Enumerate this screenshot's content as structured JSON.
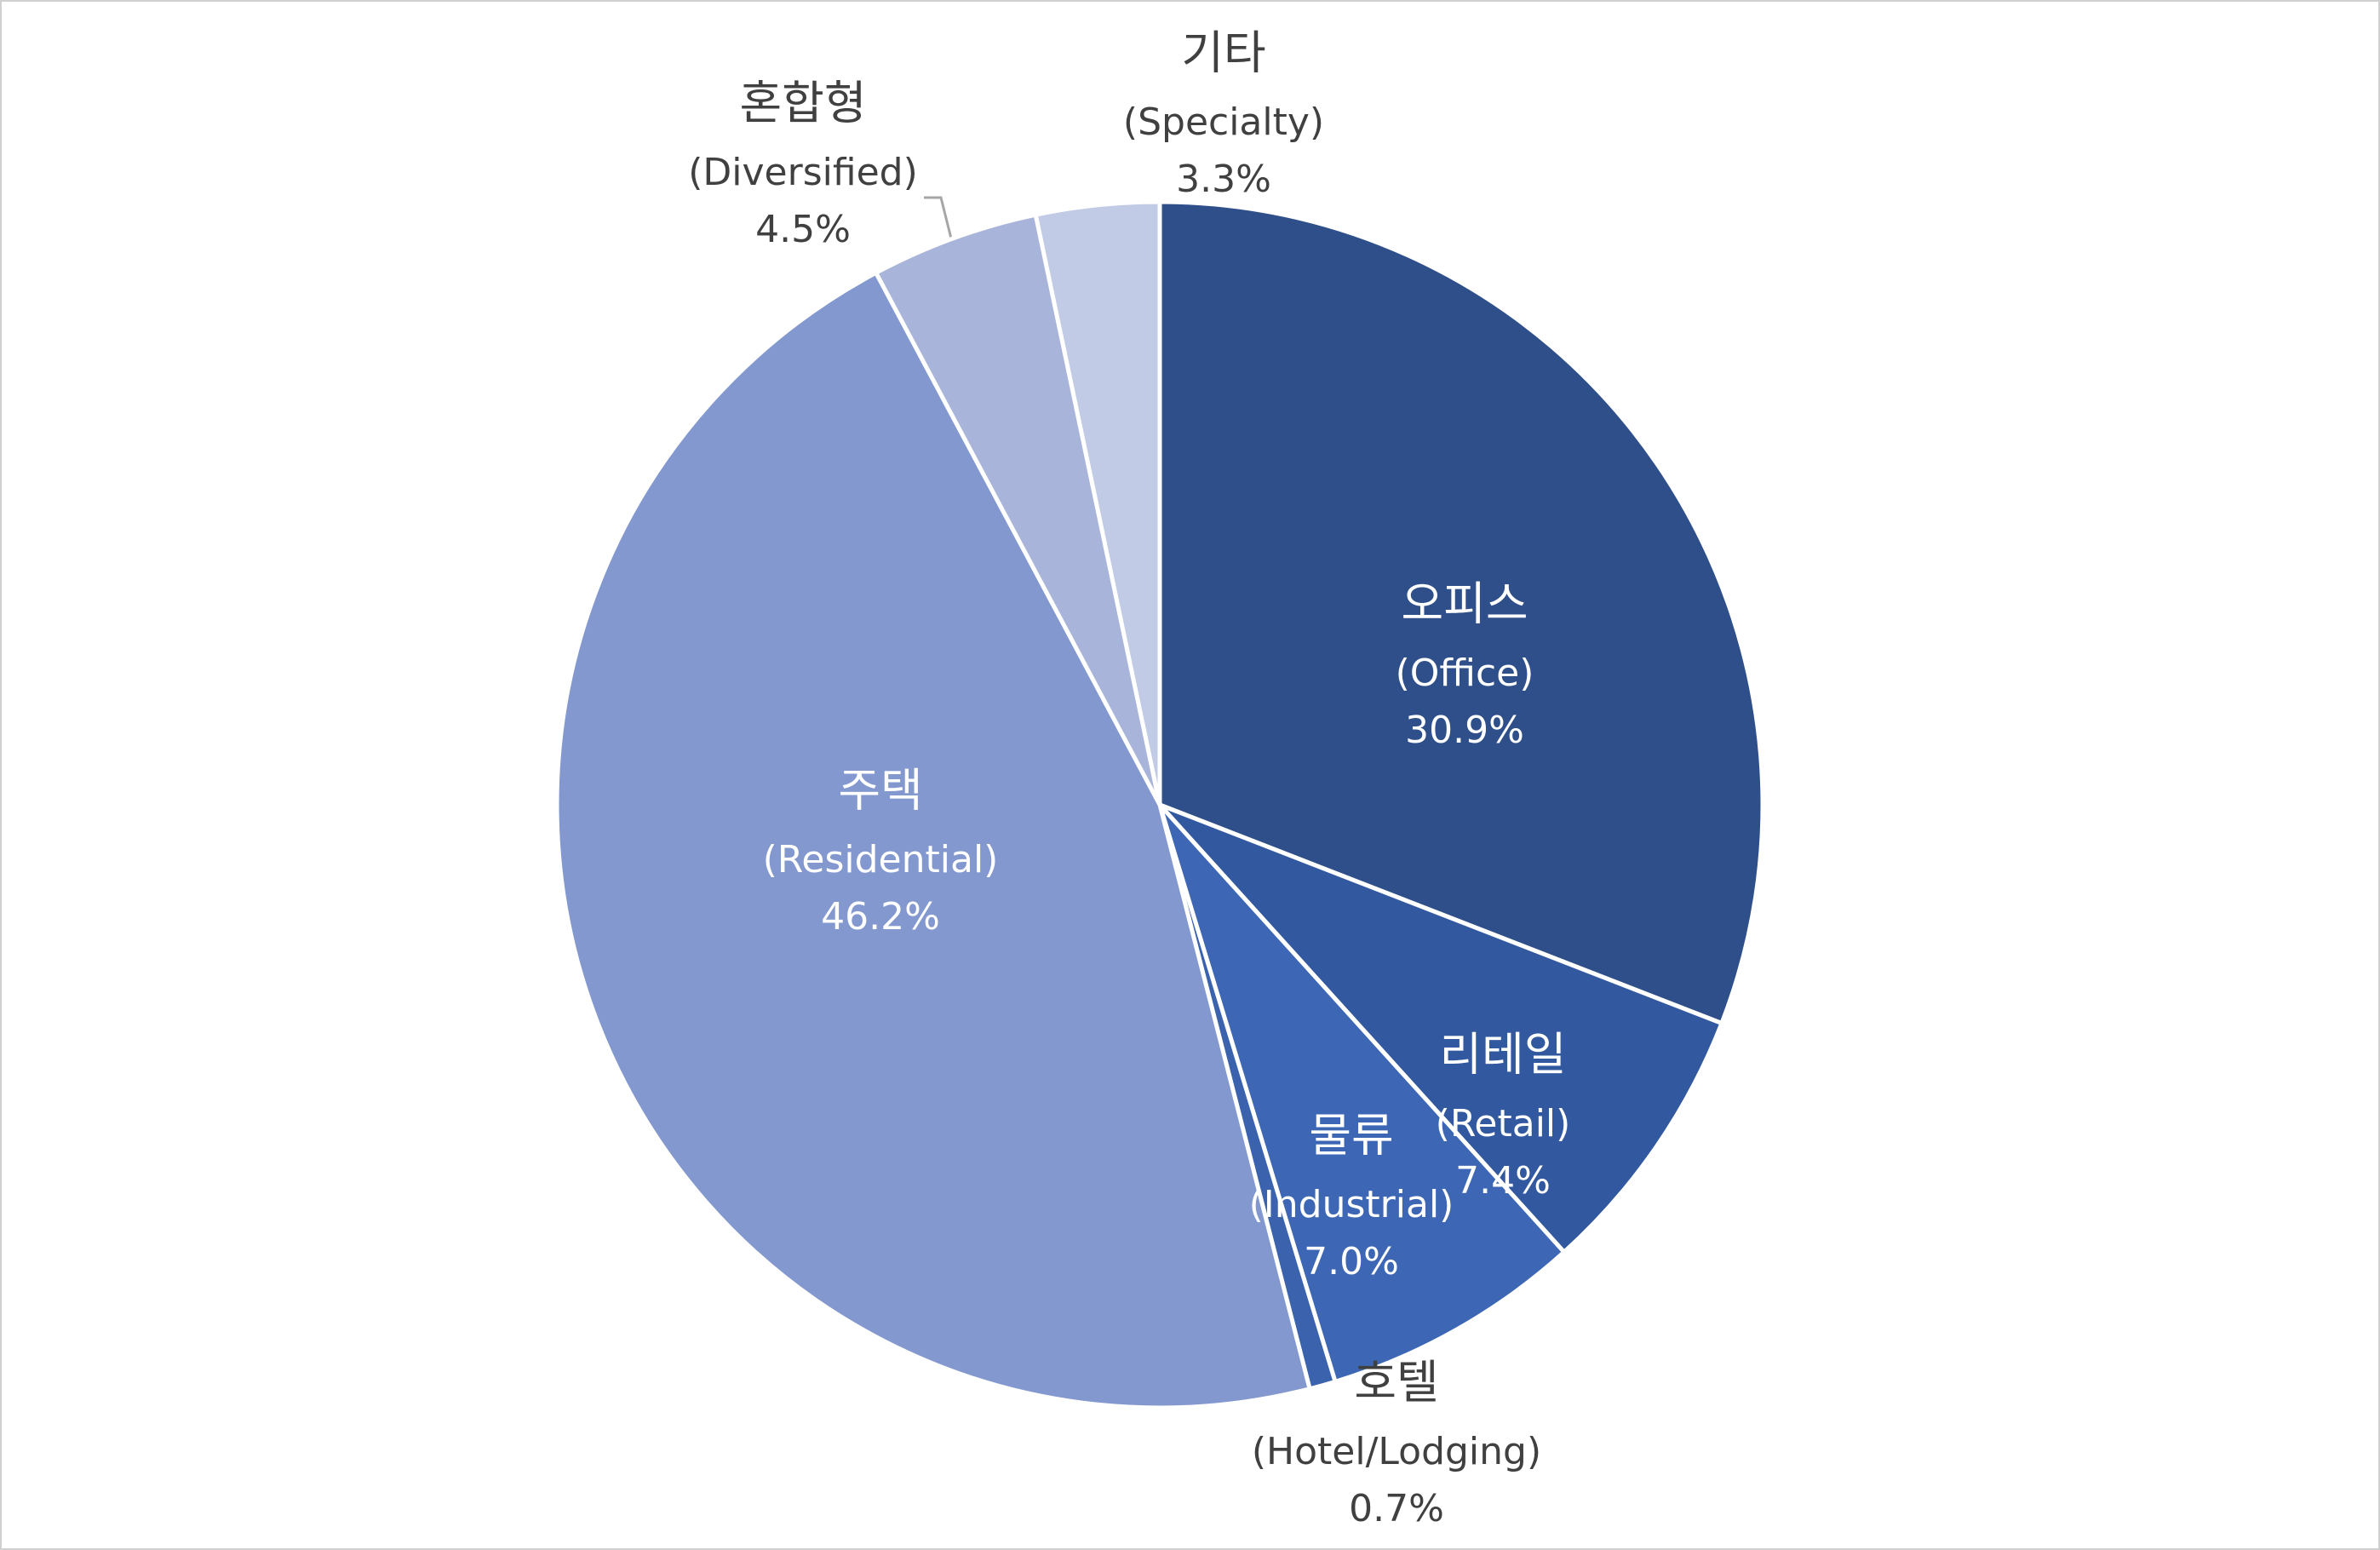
{
  "chart_data": {
    "type": "pie",
    "categories": [
      "오피스",
      "리테일",
      "물류",
      "호텔",
      "주택",
      "혼합형",
      "기타"
    ],
    "english_names": [
      "(Office)",
      "(Retail)",
      "(Industrial)",
      "(Hotel/Lodging)",
      "(Residential)",
      "(Diversified)",
      "(Specialty)"
    ],
    "values": [
      30.9,
      7.4,
      7.0,
      0.7,
      46.2,
      4.5,
      3.3
    ],
    "value_labels": [
      "30.9%",
      "7.4%",
      "7.0%",
      "0.7%",
      "46.2%",
      "4.5%",
      "3.3%"
    ],
    "colors": [
      "#2f4f8a",
      "#3259a0",
      "#3d67b4",
      "#3a62ad",
      "#8298cf",
      "#a8b4da",
      "#c2cbe5"
    ]
  }
}
